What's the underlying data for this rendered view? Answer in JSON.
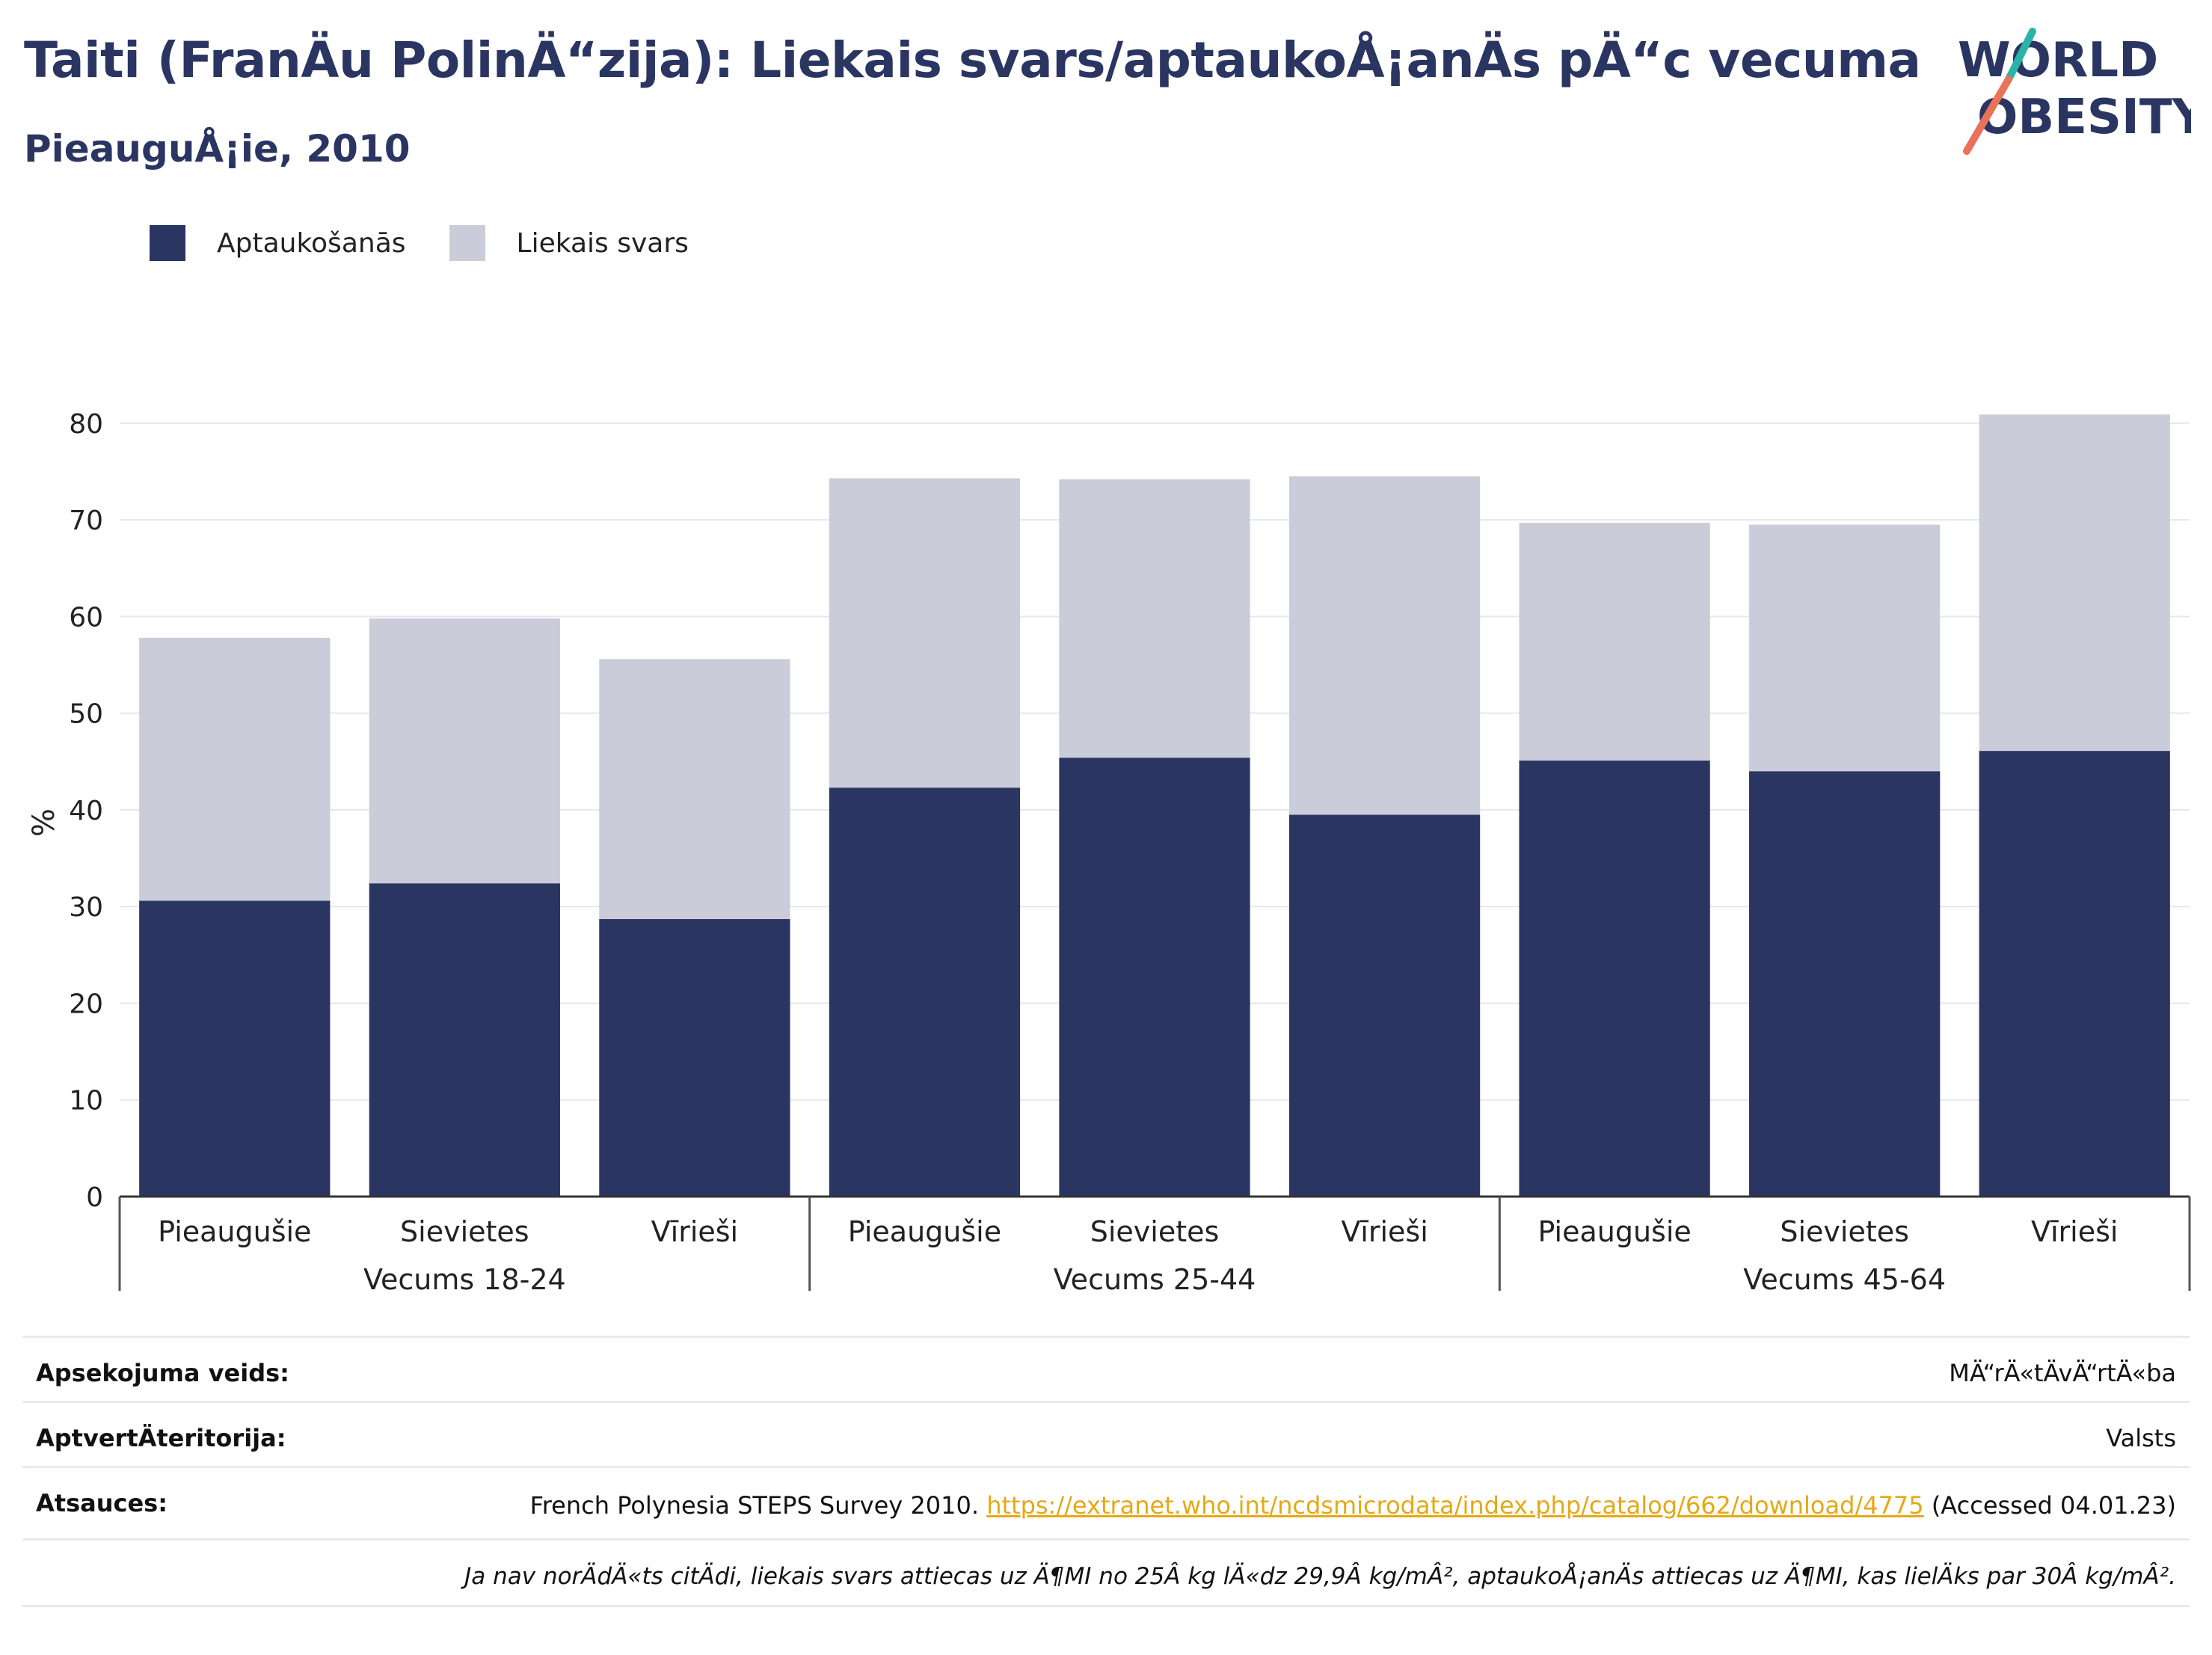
{
  "header": {
    "title": "Taiti (FranÄu PolinÄ“zija): Liekais svars/aptaukoÅ¡anÄs pÄ“c vecuma",
    "subtitle": "PieauguÅ¡ie, 2010"
  },
  "logo": {
    "line1": "WORLD",
    "line2": "OBESITY",
    "accent_colors": [
      "#2ab3a6",
      "#e8735a"
    ],
    "text_color": "#2a3562"
  },
  "chart_data": {
    "type": "bar",
    "stacked": true,
    "ylabel": "%",
    "ylim": [
      0,
      82
    ],
    "yticks": [
      0,
      10,
      20,
      30,
      40,
      50,
      60,
      70,
      80
    ],
    "grid": true,
    "legend_position": "top-left",
    "categories": [
      "Pieaugušie",
      "Sievietes",
      "Vīrieši",
      "Pieaugušie",
      "Sievietes",
      "Vīrieši",
      "Pieaugušie",
      "Sievietes",
      "Vīrieši"
    ],
    "groups": [
      {
        "label": "Vecums 18-24",
        "count": 3
      },
      {
        "label": "Vecums 25-44",
        "count": 3
      },
      {
        "label": "Vecums 45-64",
        "count": 3
      }
    ],
    "series": [
      {
        "name": "Aptaukošanās",
        "color": "#2a3562",
        "values": [
          30.6,
          32.4,
          28.7,
          42.3,
          45.4,
          39.5,
          45.1,
          44.0,
          46.1
        ]
      },
      {
        "name": "Liekais svars",
        "color": "#cacdd9",
        "values": [
          27.2,
          27.4,
          26.9,
          32.0,
          28.8,
          35.0,
          24.6,
          25.5,
          34.8
        ]
      }
    ]
  },
  "info": {
    "survey_label": "Apsekojuma veids:",
    "survey_value": "MÄ“rÄ«tÄvÄ“rtÄ«ba",
    "coverage_label": "AptvertÄteritorija:",
    "coverage_value": "Valsts",
    "refs_label": "Atsauces:",
    "refs_text": "French Polynesia STEPS Survey 2010.",
    "refs_link": "https://extranet.who.int/ncdsmicrodata/index.php/catalog/662/download/4775",
    "refs_accessed": "(Accessed 04.01.23)",
    "note": "Ja nav norÄdÄ«ts citÄdi, liekais svars attiecas uz Ä¶MI no 25Â kg lÄ«dz 29,9Â kg/mÂ², aptaukoÅ¡anÄs attiecas uz Ä¶MI, kas lielÄks par 30Â kg/mÂ²."
  }
}
